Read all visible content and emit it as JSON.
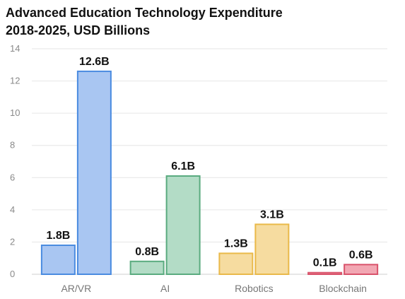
{
  "chart_data": {
    "type": "bar",
    "title_lines": [
      "Advanced Education Technology Expenditure",
      "2018-2025, USD Billions"
    ],
    "categories": [
      "AR/VR",
      "AI",
      "Robotics",
      "Blockchain"
    ],
    "series": [
      {
        "values": [
          1.8,
          0.8,
          1.3,
          0.1
        ]
      },
      {
        "values": [
          12.6,
          6.1,
          3.1,
          0.6
        ]
      }
    ],
    "data_labels": [
      [
        "1.8B",
        "0.8B",
        "1.3B",
        "0.1B"
      ],
      [
        "12.6B",
        "6.1B",
        "3.1B",
        "0.6B"
      ]
    ],
    "category_colors": [
      {
        "fill": "#a9c6f2",
        "stroke": "#4a8be0"
      },
      {
        "fill": "#b3dcc6",
        "stroke": "#5aab7f"
      },
      {
        "fill": "#f6dca0",
        "stroke": "#e9b949"
      },
      {
        "fill": "#f2a7b3",
        "stroke": "#d9536b"
      }
    ],
    "yticks": [
      0,
      2,
      4,
      6,
      8,
      10,
      12,
      14
    ],
    "ylim": [
      0,
      14
    ],
    "grid": true,
    "xlabel": "",
    "ylabel": ""
  }
}
